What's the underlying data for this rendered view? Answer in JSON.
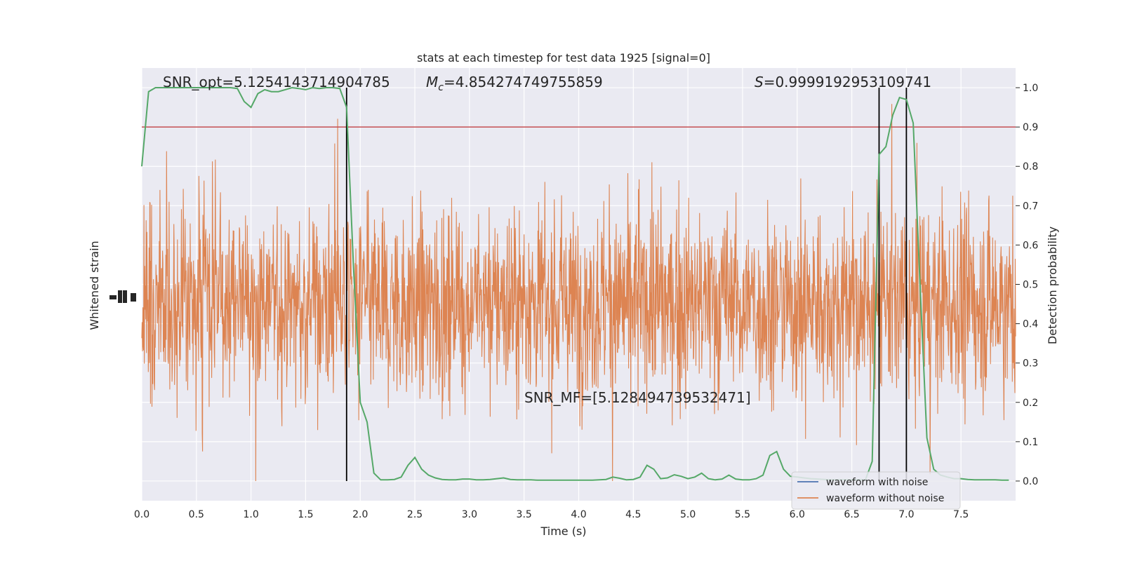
{
  "chart_data": {
    "type": "line",
    "title": "stats at each timestep for test data 1925 [signal=0]",
    "xlabel": "Time (s)",
    "ylabel_left": "Whitened strain",
    "ylabel_right": "Detection probability",
    "xlim": [
      0,
      8
    ],
    "ylim_right": [
      -0.05,
      1.05
    ],
    "x_ticks": [
      0.0,
      0.5,
      1.0,
      1.5,
      2.0,
      2.5,
      3.0,
      3.5,
      4.0,
      4.5,
      5.0,
      5.5,
      6.0,
      6.5,
      7.0,
      7.5
    ],
    "x_tick_labels": [
      "0.0",
      "0.5",
      "1.0",
      "1.5",
      "2.0",
      "2.5",
      "3.0",
      "3.5",
      "4.0",
      "4.5",
      "5.0",
      "5.5",
      "6.0",
      "6.5",
      "7.0",
      "7.5"
    ],
    "y_ticks_right": [
      0.0,
      0.1,
      0.2,
      0.3,
      0.4,
      0.5,
      0.6,
      0.7,
      0.8,
      0.9,
      1.0
    ],
    "y_tick_labels_right": [
      "0.0",
      "0.1",
      "0.2",
      "0.3",
      "0.4",
      "0.5",
      "0.6",
      "0.7",
      "0.8",
      "0.9",
      "1.0"
    ],
    "grid": true,
    "legend_placement": "lower-right",
    "annotations": {
      "snr_opt": "SNR_opt=5.1254143714904785",
      "mc_symbol": "M",
      "mc_sub": "c",
      "mc_value": "=4.854274749755859",
      "s_symbol": "S",
      "s_value": "=0.9999192953109741",
      "snr_mf": "SNR_MF=[5.128494739532471]"
    },
    "threshold": 0.9,
    "vlines_x": [
      1.875,
      6.75,
      7.0
    ],
    "series": [
      {
        "name": "waveform with noise",
        "color": "#4c72b0",
        "kind": "strain"
      },
      {
        "name": "waveform without noise",
        "color": "#dd8452",
        "kind": "strain"
      },
      {
        "color": "#55a868",
        "kind": "probability",
        "x": [
          0.0,
          0.0625,
          0.125,
          0.1875,
          0.25,
          0.3125,
          0.375,
          0.4375,
          0.5,
          0.5625,
          0.625,
          0.6875,
          0.75,
          0.8125,
          0.875,
          0.9375,
          1.0,
          1.0625,
          1.125,
          1.1875,
          1.25,
          1.3125,
          1.375,
          1.4375,
          1.5,
          1.5625,
          1.625,
          1.6875,
          1.75,
          1.8125,
          1.875,
          1.9375,
          2.0,
          2.0625,
          2.125,
          2.1875,
          2.25,
          2.3125,
          2.375,
          2.4375,
          2.5,
          2.5625,
          2.625,
          2.6875,
          2.75,
          2.8125,
          2.875,
          2.9375,
          3.0,
          3.0625,
          3.125,
          3.1875,
          3.25,
          3.3125,
          3.375,
          3.4375,
          3.5,
          3.5625,
          3.625,
          3.6875,
          3.75,
          3.8125,
          3.875,
          3.9375,
          4.0,
          4.0625,
          4.125,
          4.1875,
          4.25,
          4.3125,
          4.375,
          4.4375,
          4.5,
          4.5625,
          4.625,
          4.6875,
          4.75,
          4.8125,
          4.875,
          4.9375,
          5.0,
          5.0625,
          5.125,
          5.1875,
          5.25,
          5.3125,
          5.375,
          5.4375,
          5.5,
          5.5625,
          5.625,
          5.6875,
          5.75,
          5.8125,
          5.875,
          5.9375,
          6.0,
          6.0625,
          6.125,
          6.1875,
          6.25,
          6.3125,
          6.375,
          6.4375,
          6.5,
          6.5625,
          6.625,
          6.6875,
          6.75,
          6.8125,
          6.875,
          6.9375,
          7.0,
          7.0625,
          7.125,
          7.1875,
          7.25,
          7.3125,
          7.375,
          7.4375,
          7.5,
          7.5625,
          7.625,
          7.6875,
          7.75,
          7.8125,
          7.875,
          7.9375
        ],
        "y": [
          0.8,
          0.99,
          1.0,
          1.0,
          1.0,
          1.0,
          1.0,
          1.0,
          1.0,
          1.0,
          1.0,
          1.0,
          1.0,
          1.0,
          0.998,
          0.965,
          0.95,
          0.985,
          0.995,
          0.99,
          0.99,
          0.995,
          1.0,
          0.998,
          0.995,
          1.0,
          0.998,
          1.0,
          1.0,
          0.998,
          0.95,
          0.55,
          0.2,
          0.15,
          0.02,
          0.003,
          0.003,
          0.004,
          0.01,
          0.04,
          0.06,
          0.03,
          0.015,
          0.008,
          0.004,
          0.003,
          0.003,
          0.005,
          0.005,
          0.003,
          0.003,
          0.004,
          0.006,
          0.008,
          0.004,
          0.003,
          0.003,
          0.003,
          0.002,
          0.002,
          0.002,
          0.002,
          0.002,
          0.002,
          0.002,
          0.002,
          0.002,
          0.003,
          0.004,
          0.01,
          0.007,
          0.003,
          0.004,
          0.01,
          0.04,
          0.03,
          0.006,
          0.008,
          0.016,
          0.012,
          0.006,
          0.01,
          0.02,
          0.006,
          0.003,
          0.005,
          0.015,
          0.005,
          0.003,
          0.003,
          0.006,
          0.015,
          0.065,
          0.075,
          0.03,
          0.012,
          0.01,
          0.008,
          0.006,
          0.005,
          0.004,
          0.003,
          0.003,
          0.003,
          0.003,
          0.003,
          0.003,
          0.05,
          0.83,
          0.85,
          0.93,
          0.975,
          0.97,
          0.91,
          0.5,
          0.11,
          0.03,
          0.015,
          0.01,
          0.006,
          0.006,
          0.004,
          0.003,
          0.003,
          0.003,
          0.003,
          0.002,
          0.002
        ]
      }
    ]
  }
}
